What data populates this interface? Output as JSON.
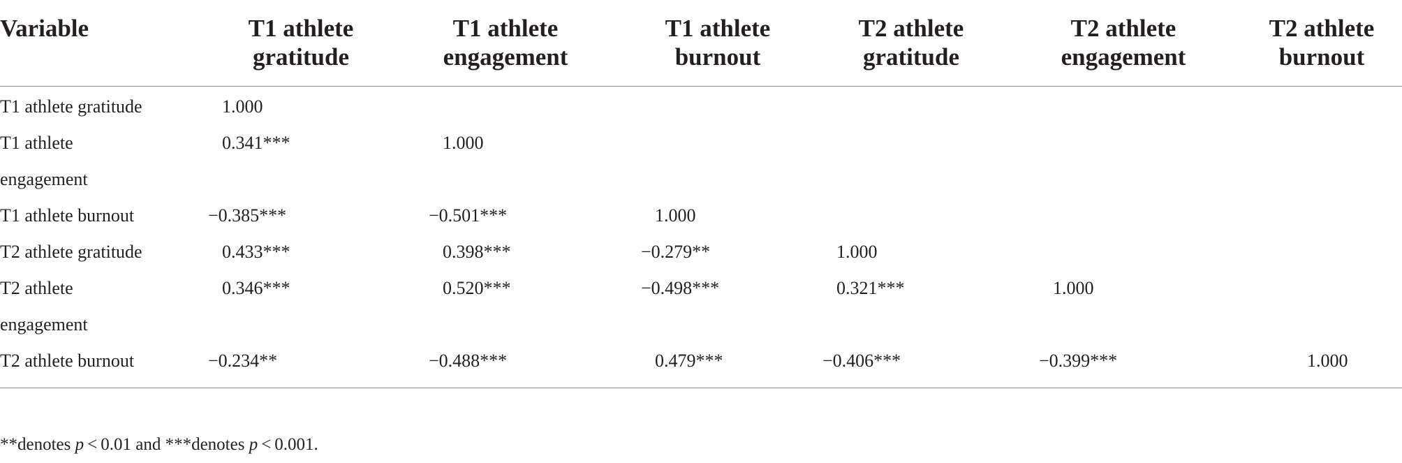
{
  "table": {
    "columns": [
      "Variable",
      "T1 athlete gratitude",
      "T1 athlete engagement",
      "T1 athlete burnout",
      "T2 athlete gratitude",
      "T2 athlete engagement",
      "T2 athlete burnout"
    ],
    "column_lines": [
      [
        "Variable",
        ""
      ],
      [
        "T1 athlete",
        "gratitude"
      ],
      [
        "T1 athlete",
        "engagement"
      ],
      [
        "T1 athlete",
        "burnout"
      ],
      [
        "T2 athlete",
        "gratitude"
      ],
      [
        "T2 athlete",
        "engagement"
      ],
      [
        "T2 athlete",
        "burnout"
      ]
    ],
    "rows": [
      {
        "label": "T1 athlete gratitude",
        "label_lines": [
          "T1 athlete gratitude"
        ],
        "values": [
          "1.000",
          "",
          "",
          "",
          "",
          ""
        ]
      },
      {
        "label": "T1 athlete engagement",
        "label_lines": [
          "T1 athlete",
          "engagement"
        ],
        "values": [
          "0.341***",
          "1.000",
          "",
          "",
          "",
          ""
        ]
      },
      {
        "label": "T1 athlete burnout",
        "label_lines": [
          "T1 athlete burnout"
        ],
        "values": [
          "−0.385***",
          "−0.501***",
          "1.000",
          "",
          "",
          ""
        ]
      },
      {
        "label": "T2 athlete gratitude",
        "label_lines": [
          "T2 athlete gratitude"
        ],
        "values": [
          "0.433***",
          "0.398***",
          "−0.279**",
          "1.000",
          "",
          ""
        ]
      },
      {
        "label": "T2 athlete engagement",
        "label_lines": [
          "T2 athlete",
          "engagement"
        ],
        "values": [
          "0.346***",
          "0.520***",
          "−0.498***",
          "0.321***",
          "1.000",
          ""
        ]
      },
      {
        "label": "T2 athlete burnout",
        "label_lines": [
          "T2 athlete burnout"
        ],
        "values": [
          "−0.234**",
          "−0.488***",
          "0.479***",
          "−0.406***",
          "−0.399***",
          "1.000"
        ]
      }
    ]
  },
  "note": {
    "part1": "**denotes ",
    "p1": "p",
    "part2": " < 0.01 and ***denotes ",
    "p2": "p",
    "part3": " < 0.001."
  }
}
